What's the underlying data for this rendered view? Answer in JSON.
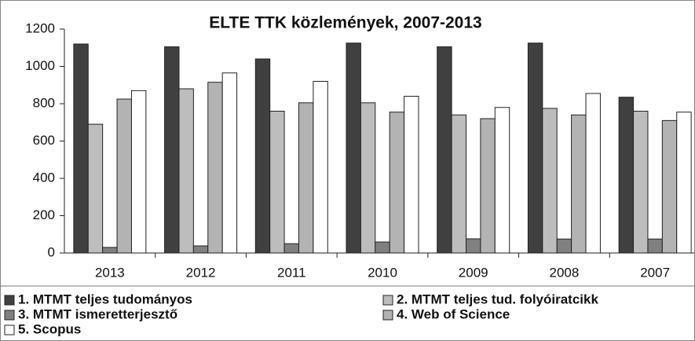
{
  "chart_data": {
    "type": "bar",
    "title": "ELTE TTK közlemények, 2007-2013",
    "categories": [
      "2013",
      "2012",
      "2011",
      "2010",
      "2009",
      "2008",
      "2007"
    ],
    "series": [
      {
        "name": "1. MTMT teljes tudományos",
        "color": "#404040",
        "values": [
          1120,
          1105,
          1040,
          1125,
          1105,
          1125,
          835
        ]
      },
      {
        "name": "2. MTMT teljes tud. folyóiratcikk",
        "color": "#bdbdbd",
        "values": [
          690,
          880,
          760,
          805,
          740,
          775,
          760
        ]
      },
      {
        "name": "3. MTMT ismeretterjesztő",
        "color": "#808080",
        "values": [
          30,
          38,
          50,
          59,
          76,
          75,
          75
        ]
      },
      {
        "name": "4. Web of Science",
        "color": "#b3b3b3",
        "values": [
          825,
          915,
          805,
          755,
          720,
          740,
          710
        ]
      },
      {
        "name": "5. Scopus",
        "color": "#ffffff",
        "values": [
          870,
          965,
          920,
          840,
          780,
          855,
          755
        ]
      }
    ],
    "ylim": [
      0,
      1200
    ],
    "yticks": [
      0,
      200,
      400,
      600,
      800,
      1000,
      1200
    ],
    "grid": false,
    "legend": "bottom"
  }
}
